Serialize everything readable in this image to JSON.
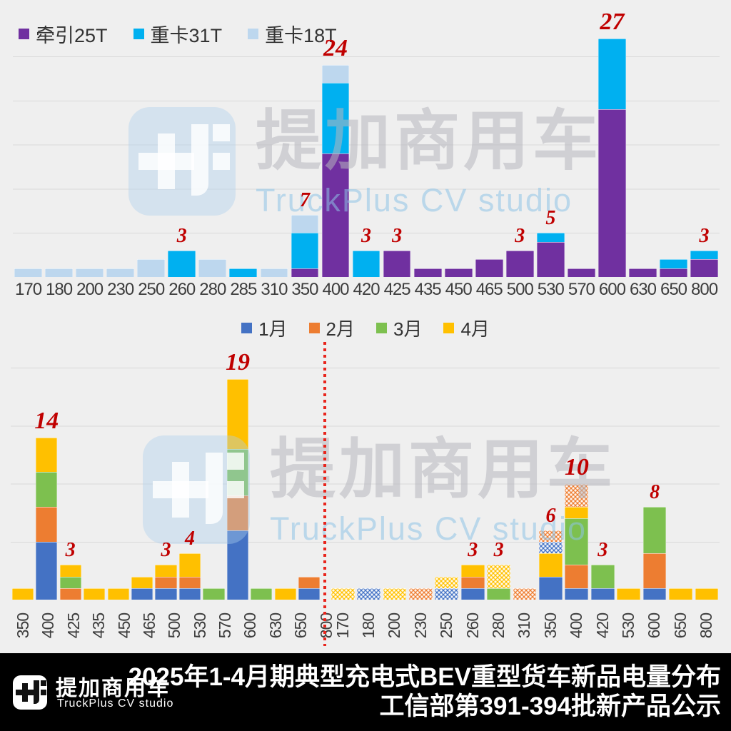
{
  "colors": {
    "background": "#efefef",
    "gridline": "#d9d9d9",
    "data_label": "#c00000",
    "divider_red": "#e8251d",
    "footer_bg": "#000000",
    "axis_text": "#3d3d3d"
  },
  "watermark": {
    "cn": "提加商用车",
    "en": "TruckPlus CV studio"
  },
  "footer": {
    "brand_cn": "提加商用车",
    "brand_en": "TruckPlus CV studio",
    "title_line1": "2025年1-4月期典型充电式BEV重型货车新品电量分布",
    "title_line2": "工信部第391-394批新产品公示"
  },
  "chart_data": [
    {
      "id": "weight-class-distribution",
      "type": "bar",
      "stacked": true,
      "grid": true,
      "legend_position": "top-left",
      "ylim": [
        0,
        25
      ],
      "y_gridline_step": 5,
      "categories": [
        "170",
        "180",
        "200",
        "230",
        "250",
        "260",
        "280",
        "285",
        "310",
        "350",
        "400",
        "420",
        "425",
        "435",
        "450",
        "465",
        "500",
        "530",
        "570",
        "600",
        "630",
        "650",
        "800"
      ],
      "series": [
        {
          "name": "牵引25T",
          "color": "#7030A0",
          "values": [
            0,
            0,
            0,
            0,
            0,
            0,
            0,
            0,
            0,
            1,
            14,
            0,
            3,
            1,
            1,
            2,
            3,
            4,
            1,
            19,
            1,
            1,
            2
          ]
        },
        {
          "name": "重卡31T",
          "color": "#00B0F0",
          "values": [
            0,
            0,
            0,
            0,
            0,
            3,
            0,
            1,
            0,
            4,
            8,
            3,
            0,
            0,
            0,
            0,
            0,
            1,
            0,
            8,
            0,
            1,
            1
          ]
        },
        {
          "name": "重卡18T",
          "color": "#BDD7EE",
          "values": [
            1,
            1,
            1,
            1,
            2,
            0,
            2,
            0,
            1,
            2,
            2,
            0,
            0,
            0,
            0,
            0,
            0,
            0,
            0,
            0,
            0,
            0,
            0
          ]
        }
      ],
      "bars": [
        {
          "cat": "170",
          "stack": [
            {
              "s": 2,
              "v": 1
            }
          ]
        },
        {
          "cat": "180",
          "stack": [
            {
              "s": 2,
              "v": 1
            }
          ]
        },
        {
          "cat": "200",
          "stack": [
            {
              "s": 2,
              "v": 1
            }
          ]
        },
        {
          "cat": "230",
          "stack": [
            {
              "s": 2,
              "v": 1
            }
          ]
        },
        {
          "cat": "250",
          "stack": [
            {
              "s": 2,
              "v": 2
            }
          ]
        },
        {
          "cat": "260",
          "label": 3,
          "stack": [
            {
              "s": 1,
              "v": 3
            }
          ]
        },
        {
          "cat": "280",
          "stack": [
            {
              "s": 2,
              "v": 2
            }
          ]
        },
        {
          "cat": "285",
          "stack": [
            {
              "s": 1,
              "v": 1
            }
          ]
        },
        {
          "cat": "310",
          "stack": [
            {
              "s": 2,
              "v": 1
            }
          ]
        },
        {
          "cat": "350",
          "label": 7,
          "stack": [
            {
              "s": 0,
              "v": 1
            },
            {
              "s": 1,
              "v": 4
            },
            {
              "s": 2,
              "v": 2
            }
          ]
        },
        {
          "cat": "400",
          "label": 24,
          "stack": [
            {
              "s": 0,
              "v": 14
            },
            {
              "s": 1,
              "v": 8
            },
            {
              "s": 2,
              "v": 2
            }
          ]
        },
        {
          "cat": "420",
          "label": 3,
          "stack": [
            {
              "s": 1,
              "v": 3
            }
          ]
        },
        {
          "cat": "425",
          "label": 3,
          "stack": [
            {
              "s": 0,
              "v": 3
            }
          ]
        },
        {
          "cat": "435",
          "stack": [
            {
              "s": 0,
              "v": 1
            }
          ]
        },
        {
          "cat": "450",
          "stack": [
            {
              "s": 0,
              "v": 1
            }
          ]
        },
        {
          "cat": "465",
          "stack": [
            {
              "s": 0,
              "v": 2
            }
          ]
        },
        {
          "cat": "500",
          "label": 3,
          "stack": [
            {
              "s": 0,
              "v": 3
            }
          ]
        },
        {
          "cat": "530",
          "label": 5,
          "stack": [
            {
              "s": 0,
              "v": 4
            },
            {
              "s": 1,
              "v": 1
            }
          ]
        },
        {
          "cat": "570",
          "stack": [
            {
              "s": 0,
              "v": 1
            }
          ]
        },
        {
          "cat": "600",
          "label": 27,
          "stack": [
            {
              "s": 0,
              "v": 19
            },
            {
              "s": 1,
              "v": 8
            }
          ]
        },
        {
          "cat": "630",
          "stack": [
            {
              "s": 0,
              "v": 1
            }
          ]
        },
        {
          "cat": "650",
          "stack": [
            {
              "s": 0,
              "v": 1
            },
            {
              "s": 1,
              "v": 1
            }
          ]
        },
        {
          "cat": "800",
          "label": 3,
          "stack": [
            {
              "s": 0,
              "v": 2
            },
            {
              "s": 1,
              "v": 1
            }
          ]
        }
      ]
    },
    {
      "id": "monthly-distribution",
      "type": "bar",
      "stacked": true,
      "grid": true,
      "legend_position": "top-center",
      "ylim": [
        0,
        20
      ],
      "y_gridline_step": 5,
      "divider": "red-dotted-vertical-line-between-sections",
      "series": [
        {
          "name": "1月",
          "color": "#4472C4",
          "values_left": [
            0,
            5,
            0,
            0,
            0,
            1,
            1,
            1,
            0,
            6,
            0,
            0,
            1
          ],
          "values_right": [
            0,
            1,
            0,
            0,
            1,
            1,
            0,
            0,
            3,
            1,
            1,
            0,
            1,
            0,
            0
          ]
        },
        {
          "name": "2月",
          "color": "#ED7D31",
          "values_left": [
            0,
            3,
            1,
            0,
            0,
            0,
            1,
            1,
            0,
            3,
            0,
            0,
            1
          ],
          "values_right": [
            0,
            0,
            0,
            1,
            0,
            1,
            0,
            1,
            1,
            4,
            0,
            0,
            3,
            0,
            0
          ]
        },
        {
          "name": "3月",
          "color": "#7DC04F",
          "values_left": [
            0,
            3,
            1,
            0,
            0,
            0,
            0,
            0,
            1,
            4,
            1,
            0,
            0
          ],
          "values_right": [
            0,
            0,
            0,
            0,
            0,
            0,
            1,
            0,
            0,
            4,
            2,
            0,
            4,
            0,
            0
          ]
        },
        {
          "name": "4月",
          "color": "#FFC000",
          "values_left": [
            1,
            3,
            1,
            1,
            1,
            1,
            1,
            2,
            0,
            6,
            0,
            1,
            0
          ],
          "values_right": [
            1,
            0,
            1,
            0,
            1,
            1,
            2,
            0,
            2,
            1,
            0,
            1,
            0,
            1,
            1
          ]
        }
      ],
      "sections": [
        {
          "name": "left",
          "categories": [
            "350",
            "400",
            "425",
            "435",
            "450",
            "465",
            "500",
            "530",
            "570",
            "600",
            "630",
            "650",
            "800"
          ],
          "bars": [
            {
              "cat": "350",
              "stack": [
                {
                  "s": 3,
                  "v": 1
                }
              ]
            },
            {
              "cat": "400",
              "label": 14,
              "stack": [
                {
                  "s": 0,
                  "v": 5
                },
                {
                  "s": 1,
                  "v": 3
                },
                {
                  "s": 2,
                  "v": 3
                },
                {
                  "s": 3,
                  "v": 3
                }
              ]
            },
            {
              "cat": "425",
              "label": 3,
              "stack": [
                {
                  "s": 1,
                  "v": 1
                },
                {
                  "s": 2,
                  "v": 1
                },
                {
                  "s": 3,
                  "v": 1
                }
              ]
            },
            {
              "cat": "435",
              "stack": [
                {
                  "s": 3,
                  "v": 1
                }
              ]
            },
            {
              "cat": "450",
              "stack": [
                {
                  "s": 3,
                  "v": 1
                }
              ]
            },
            {
              "cat": "465",
              "stack": [
                {
                  "s": 0,
                  "v": 1
                },
                {
                  "s": 3,
                  "v": 1
                }
              ]
            },
            {
              "cat": "500",
              "label": 3,
              "stack": [
                {
                  "s": 0,
                  "v": 1
                },
                {
                  "s": 1,
                  "v": 1
                },
                {
                  "s": 3,
                  "v": 1
                }
              ]
            },
            {
              "cat": "530",
              "label": 4,
              "stack": [
                {
                  "s": 0,
                  "v": 1
                },
                {
                  "s": 1,
                  "v": 1
                },
                {
                  "s": 3,
                  "v": 2
                }
              ]
            },
            {
              "cat": "570",
              "stack": [
                {
                  "s": 2,
                  "v": 1
                }
              ]
            },
            {
              "cat": "600",
              "label": 19,
              "stack": [
                {
                  "s": 0,
                  "v": 6
                },
                {
                  "s": 1,
                  "v": 3
                },
                {
                  "s": 2,
                  "v": 4
                },
                {
                  "s": 3,
                  "v": 6
                }
              ]
            },
            {
              "cat": "630",
              "stack": [
                {
                  "s": 2,
                  "v": 1
                }
              ]
            },
            {
              "cat": "650",
              "stack": [
                {
                  "s": 3,
                  "v": 1
                }
              ]
            },
            {
              "cat": "800",
              "stack": [
                {
                  "s": 0,
                  "v": 1
                },
                {
                  "s": 1,
                  "v": 1
                }
              ]
            }
          ]
        },
        {
          "name": "right",
          "categories": [
            "170",
            "180",
            "200",
            "230",
            "250",
            "260",
            "280",
            "310",
            "350",
            "400",
            "420",
            "530",
            "600",
            "650",
            "800"
          ],
          "bars": [
            {
              "cat": "170",
              "stack": [
                {
                  "s": 3,
                  "v": 1,
                  "hatched": true
                }
              ]
            },
            {
              "cat": "180",
              "stack": [
                {
                  "s": 0,
                  "v": 1,
                  "hatched": true
                }
              ]
            },
            {
              "cat": "200",
              "stack": [
                {
                  "s": 3,
                  "v": 1,
                  "hatched": true
                }
              ]
            },
            {
              "cat": "230",
              "stack": [
                {
                  "s": 1,
                  "v": 1,
                  "hatched": true
                }
              ]
            },
            {
              "cat": "250",
              "stack": [
                {
                  "s": 0,
                  "v": 1,
                  "hatched": true
                },
                {
                  "s": 3,
                  "v": 1,
                  "hatched": true
                }
              ]
            },
            {
              "cat": "260",
              "label": 3,
              "stack": [
                {
                  "s": 0,
                  "v": 1
                },
                {
                  "s": 1,
                  "v": 1
                },
                {
                  "s": 3,
                  "v": 1
                }
              ]
            },
            {
              "cat": "280",
              "label": 3,
              "stack": [
                {
                  "s": 2,
                  "v": 1
                },
                {
                  "s": 3,
                  "v": 2,
                  "hatched": true
                }
              ]
            },
            {
              "cat": "310",
              "stack": [
                {
                  "s": 1,
                  "v": 1,
                  "hatched": true
                }
              ]
            },
            {
              "cat": "350",
              "label": 6,
              "stack": [
                {
                  "s": 0,
                  "v": 2
                },
                {
                  "s": 3,
                  "v": 2
                },
                {
                  "s": 0,
                  "v": 1,
                  "hatched": true
                },
                {
                  "s": 1,
                  "v": 1,
                  "hatched": true
                }
              ]
            },
            {
              "cat": "400",
              "label": 10,
              "stack": [
                {
                  "s": 0,
                  "v": 1
                },
                {
                  "s": 1,
                  "v": 2
                },
                {
                  "s": 2,
                  "v": 4
                },
                {
                  "s": 3,
                  "v": 1
                },
                {
                  "s": 1,
                  "v": 2,
                  "hatched": true
                }
              ]
            },
            {
              "cat": "420",
              "label": 3,
              "stack": [
                {
                  "s": 0,
                  "v": 1
                },
                {
                  "s": 2,
                  "v": 2
                }
              ]
            },
            {
              "cat": "530",
              "stack": [
                {
                  "s": 3,
                  "v": 1
                }
              ]
            },
            {
              "cat": "600",
              "label": 8,
              "stack": [
                {
                  "s": 0,
                  "v": 1
                },
                {
                  "s": 1,
                  "v": 3
                },
                {
                  "s": 2,
                  "v": 4
                }
              ]
            },
            {
              "cat": "650",
              "stack": [
                {
                  "s": 3,
                  "v": 1
                }
              ]
            },
            {
              "cat": "800",
              "stack": [
                {
                  "s": 3,
                  "v": 1
                }
              ]
            }
          ]
        }
      ]
    }
  ]
}
